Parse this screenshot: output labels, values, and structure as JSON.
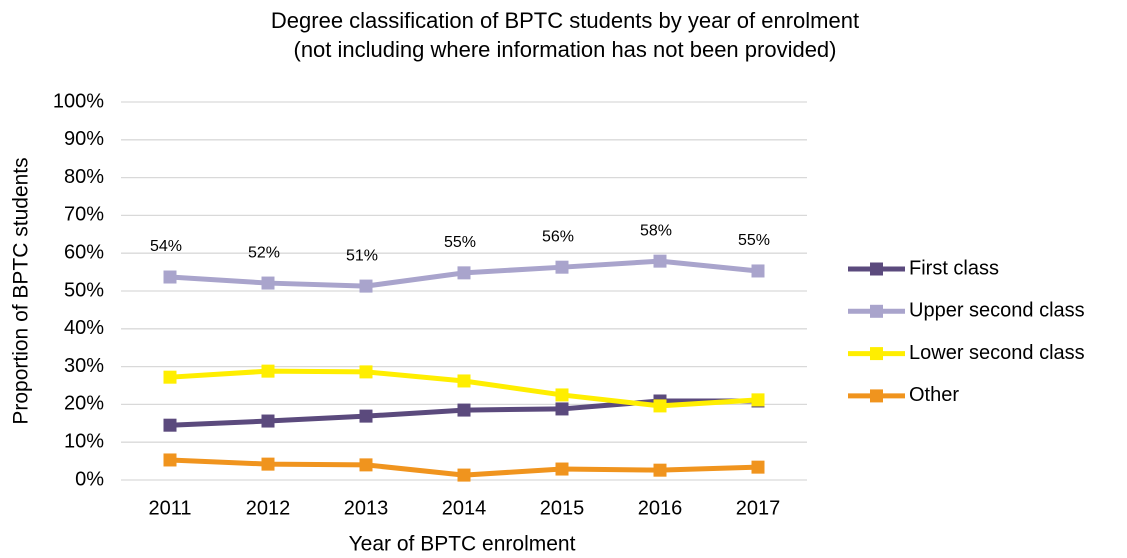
{
  "chart_data": {
    "type": "line",
    "title": "Degree classification of BPTC students by year of enrolment",
    "subtitle": "(not including where information has not been provided)",
    "x_label": "Year of BPTC enrolment",
    "y_label": "Proportion of BPTC students",
    "categories": [
      "2011",
      "2012",
      "2013",
      "2014",
      "2015",
      "2016",
      "2017"
    ],
    "series": [
      {
        "name": "First class",
        "color": "#5b4a7d",
        "values": [
          14.5,
          15.6,
          16.9,
          18.5,
          18.8,
          20.9,
          20.9
        ]
      },
      {
        "name": "Upper second class",
        "color": "#a9a4cc",
        "values": [
          53.7,
          52.1,
          51.3,
          54.8,
          56.3,
          57.9,
          55.3
        ],
        "value_labels": [
          "54%",
          "52%",
          "51%",
          "55%",
          "56%",
          "58%",
          "55%"
        ]
      },
      {
        "name": "Lower second class",
        "color": "#ffee00",
        "values": [
          27.2,
          28.8,
          28.6,
          26.2,
          22.5,
          19.6,
          21.2
        ]
      },
      {
        "name": "Other",
        "color": "#f0941e",
        "values": [
          5.3,
          4.2,
          4.0,
          1.3,
          2.9,
          2.6,
          3.4
        ]
      }
    ],
    "ylim": [
      0,
      100
    ],
    "yticks": [
      {
        "value": 0,
        "label": "0%"
      },
      {
        "value": 10,
        "label": "10%"
      },
      {
        "value": 20,
        "label": "20%"
      },
      {
        "value": 30,
        "label": "30%"
      },
      {
        "value": 40,
        "label": "40%"
      },
      {
        "value": 50,
        "label": "50%"
      },
      {
        "value": 60,
        "label": "60%"
      },
      {
        "value": 70,
        "label": "70%"
      },
      {
        "value": 80,
        "label": "80%"
      },
      {
        "value": 90,
        "label": "90%"
      },
      {
        "value": 100,
        "label": "100%"
      }
    ],
    "grid": true,
    "legend": "right"
  }
}
